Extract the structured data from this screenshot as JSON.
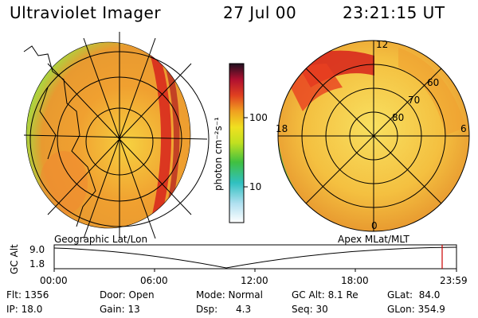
{
  "header": {
    "title": "Ultraviolet Imager",
    "date": "27 Jul 00",
    "time": "23:21:15 UT"
  },
  "colorbar": {
    "label": "photon cm⁻²s⁻¹",
    "ticks": [
      "100",
      "10"
    ]
  },
  "left_panel": {
    "caption": "Geographic Lat/Lon"
  },
  "right_panel": {
    "caption": "Apex MLat/MLT",
    "hour_labels": [
      "12",
      "18",
      "6",
      "0"
    ],
    "lat_labels": [
      "60",
      "70",
      "80"
    ]
  },
  "altitude_plot": {
    "axis_label": "GC Alt",
    "y_ticks": [
      "9.0",
      "1.8"
    ],
    "x_ticks": [
      "00:00",
      "06:00",
      "12:00",
      "18:00",
      "23:59"
    ]
  },
  "status": {
    "flt": "Flt: 1356",
    "ip": "IP: 18.0",
    "door": "Door: Open",
    "gain": "Gain: 13",
    "mode": "Mode: Normal",
    "dsp": "Dsp:      4.3",
    "gcalt": "GC Alt: 8.1 Re",
    "seq": "Seq: 30",
    "glat": "GLat:  84.0",
    "glon": "GLon: 354.9"
  },
  "colors": {
    "marker": "#cc0000",
    "bright": "#e8202a",
    "mid": "#f0a020",
    "low": "#40c040"
  }
}
